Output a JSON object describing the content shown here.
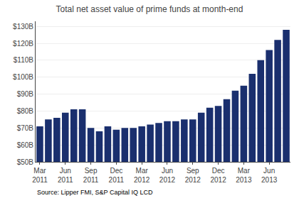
{
  "chart_data": {
    "type": "bar",
    "title": "Total net asset value of prime funds at month-end",
    "annotations": [
      "Source: Lipper FMI, S&P Capital IQ LCD"
    ],
    "categories": [
      "Mar\n2011",
      null,
      null,
      "Jun\n2011",
      null,
      null,
      "Sep\n2011",
      null,
      null,
      "Dec\n2011",
      null,
      null,
      "Mar\n2012",
      null,
      null,
      "Jun\n2012",
      null,
      null,
      "Sep\n2012",
      null,
      null,
      "Dec\n2012",
      null,
      null,
      "Mar\n2013",
      null,
      null,
      "Jun\n2013",
      null,
      null
    ],
    "values": [
      71,
      75,
      76,
      79,
      81,
      81,
      70,
      68,
      71,
      69,
      70,
      70,
      71,
      72,
      73,
      74,
      74,
      75,
      75,
      79,
      82,
      83,
      87,
      92,
      95,
      102,
      110,
      116,
      122,
      128
    ],
    "color": "#1a2f6e",
    "ylim": [
      50,
      133
    ],
    "yticks": [
      {
        "value": 50,
        "label": "$50B"
      },
      {
        "value": 60,
        "label": "$60B"
      },
      {
        "value": 70,
        "label": "$70B"
      },
      {
        "value": 80,
        "label": "$80B"
      },
      {
        "value": 90,
        "label": "$90B"
      },
      {
        "value": 100,
        "label": "$100B"
      },
      {
        "value": 110,
        "label": "$110B"
      },
      {
        "value": 120,
        "label": "$120B"
      },
      {
        "value": 130,
        "label": "$130B"
      }
    ],
    "grid": true
  }
}
